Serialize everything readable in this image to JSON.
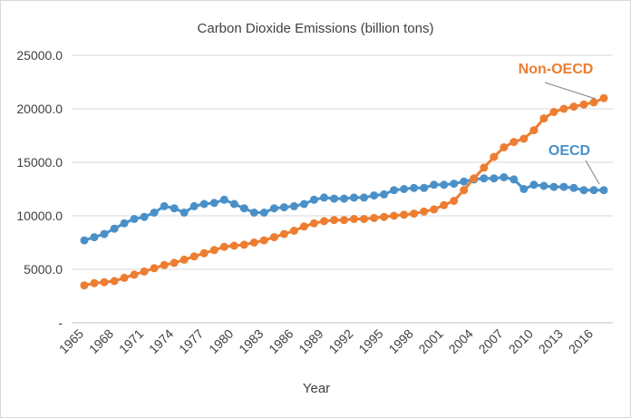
{
  "chart_data": {
    "type": "line",
    "title": "Carbon Dioxide Emissions (billion tons)",
    "xlabel": "Year",
    "ylabel": "",
    "ylim": [
      0,
      25000
    ],
    "yticks": [
      "-",
      "5000.0",
      "10000.0",
      "15000.0",
      "20000.0",
      "25000.0"
    ],
    "xticks": [
      "1965",
      "1968",
      "1971",
      "1974",
      "1977",
      "1980",
      "1983",
      "1986",
      "1989",
      "1992",
      "1995",
      "1998",
      "2001",
      "2004",
      "2007",
      "2010",
      "2013",
      "2016"
    ],
    "grid": true,
    "legend": "none",
    "x": [
      1965,
      1966,
      1967,
      1968,
      1969,
      1970,
      1971,
      1972,
      1973,
      1974,
      1975,
      1976,
      1977,
      1978,
      1979,
      1980,
      1981,
      1982,
      1983,
      1984,
      1985,
      1986,
      1987,
      1988,
      1989,
      1990,
      1991,
      1992,
      1993,
      1994,
      1995,
      1996,
      1997,
      1998,
      1999,
      2000,
      2001,
      2002,
      2003,
      2004,
      2005,
      2006,
      2007,
      2008,
      2009,
      2010,
      2011,
      2012,
      2013,
      2014,
      2015,
      2016,
      2017
    ],
    "series": [
      {
        "name": "OECD",
        "color": "#4a90c8",
        "values": [
          7700,
          8000,
          8300,
          8800,
          9300,
          9700,
          9900,
          10300,
          10900,
          10700,
          10300,
          10900,
          11100,
          11200,
          11500,
          11100,
          10700,
          10300,
          10300,
          10700,
          10800,
          10900,
          11100,
          11500,
          11700,
          11600,
          11600,
          11700,
          11700,
          11900,
          12000,
          12400,
          12500,
          12600,
          12600,
          12900,
          12900,
          13000,
          13200,
          13400,
          13500,
          13500,
          13600,
          13400,
          12500,
          12900,
          12800,
          12700,
          12700,
          12600,
          12400,
          12400,
          12400
        ]
      },
      {
        "name": "Non-OECD",
        "color": "#ed7d31",
        "values": [
          3500,
          3700,
          3800,
          3900,
          4200,
          4500,
          4800,
          5100,
          5400,
          5600,
          5900,
          6200,
          6500,
          6800,
          7100,
          7200,
          7300,
          7500,
          7700,
          8000,
          8300,
          8600,
          9000,
          9300,
          9500,
          9600,
          9600,
          9700,
          9700,
          9800,
          9900,
          10000,
          10100,
          10200,
          10400,
          10600,
          11000,
          11400,
          12400,
          13500,
          14500,
          15500,
          16400,
          16900,
          17200,
          18000,
          19100,
          19700,
          20000,
          20200,
          20400,
          20600,
          21000
        ]
      }
    ]
  }
}
